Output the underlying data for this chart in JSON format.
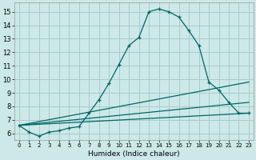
{
  "xlabel": "Humidex (Indice chaleur)",
  "bg_color": "#cce8e8",
  "grid_color": "#aacccc",
  "line_color": "#006666",
  "xlim": [
    -0.5,
    23.5
  ],
  "ylim": [
    5.5,
    15.7
  ],
  "yticks": [
    6,
    7,
    8,
    9,
    10,
    11,
    12,
    13,
    14,
    15
  ],
  "xticks": [
    0,
    1,
    2,
    3,
    4,
    5,
    6,
    7,
    8,
    9,
    10,
    11,
    12,
    13,
    14,
    15,
    16,
    17,
    18,
    19,
    20,
    21,
    22,
    23
  ],
  "series1_x": [
    0,
    1,
    2,
    3,
    4,
    5,
    6,
    7,
    8,
    9,
    10,
    11,
    12,
    13,
    14,
    15,
    16,
    17,
    18,
    19,
    20,
    21,
    22,
    23
  ],
  "series1_y": [
    6.6,
    6.1,
    5.8,
    6.1,
    6.2,
    6.4,
    6.5,
    7.5,
    8.5,
    9.7,
    11.1,
    12.5,
    13.1,
    15.0,
    15.2,
    15.0,
    14.6,
    13.6,
    12.5,
    9.8,
    9.2,
    8.3,
    7.5,
    7.5
  ],
  "series2_x": [
    0,
    23
  ],
  "series2_y": [
    6.6,
    7.5
  ],
  "series3_x": [
    0,
    23
  ],
  "series3_y": [
    6.6,
    8.3
  ],
  "series4_x": [
    0,
    23
  ],
  "series4_y": [
    6.6,
    9.8
  ]
}
